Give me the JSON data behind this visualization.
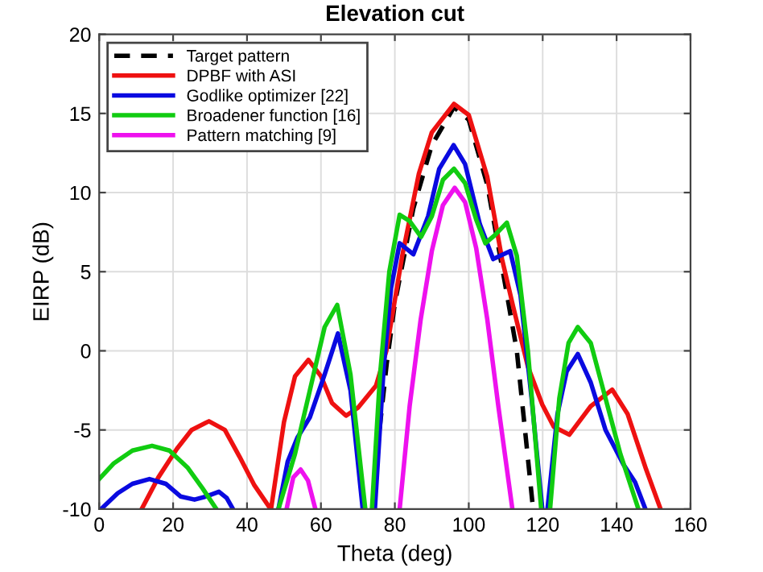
{
  "chart_data": {
    "type": "line",
    "title": "Elevation cut",
    "xlabel": "Theta (deg)",
    "ylabel": "EIRP (dB)",
    "xlim": [
      0,
      160
    ],
    "xticks": [
      0,
      20,
      40,
      60,
      80,
      100,
      120,
      140,
      160
    ],
    "ylim": [
      -10,
      20
    ],
    "yticks": [
      -10,
      -5,
      0,
      5,
      10,
      15,
      20
    ],
    "grid": true,
    "legend": "top left",
    "series": [
      {
        "name": "Target pattern",
        "color": "#000000",
        "line_style": "dashed",
        "x": [
          74.2,
          75,
          77.8,
          80,
          85,
          90,
          96,
          100,
          105,
          110,
          113,
          115,
          117.4
        ],
        "values": [
          -10,
          -6.8,
          -0.8,
          3,
          9,
          13,
          15.4,
          14.6,
          10.5,
          4,
          0,
          -4.5,
          -10
        ]
      },
      {
        "name": "DPBF with ASI",
        "color": "#ee1111",
        "x": [
          11.5,
          16,
          21,
          25,
          29.7,
          34,
          38,
          42,
          46.4,
          null,
          46.5,
          50,
          53,
          56.6,
          60,
          63,
          66.8,
          70,
          74.9,
          77.7,
          82,
          86.5,
          90,
          96,
          100,
          105,
          109,
          112,
          116,
          119.9,
          123,
          127.2,
          133,
          138.8,
          143,
          148,
          151.9
        ],
        "values": [
          -10,
          -8,
          -6.2,
          -5,
          -4.45,
          -5,
          -6.7,
          -8.5,
          -10,
          null,
          -10,
          -4.5,
          -1.6,
          -0.57,
          -1.6,
          -3.3,
          -4.1,
          -3.6,
          -2.2,
          0,
          6,
          11.2,
          13.8,
          15.6,
          14.9,
          11,
          5.8,
          2.8,
          -1,
          -3.4,
          -4.8,
          -5.3,
          -3.5,
          -2.45,
          -4,
          -7.5,
          -10
        ]
      },
      {
        "name": "Godlike optimizer [22]",
        "color": "#0a0ae0",
        "x": [
          0.5,
          5,
          9,
          13.6,
          18,
          22,
          25.8,
          29,
          32.4,
          34.5,
          36.2,
          null,
          48.5,
          51,
          53.6,
          57,
          61,
          64.6,
          68,
          71.3,
          null,
          74.6,
          77,
          79,
          81.3,
          85,
          89,
          92,
          95.9,
          99,
          103,
          106.6,
          111.2,
          114,
          117,
          119.9,
          null,
          121.3,
          124,
          126.5,
          129.5,
          133,
          137,
          141.9,
          145,
          147.8
        ],
        "values": [
          -10,
          -9,
          -8.4,
          -8.1,
          -8.4,
          -9.2,
          -9.4,
          -9.2,
          -8.9,
          -9.3,
          -10,
          null,
          -10,
          -7,
          -5.5,
          -4.2,
          -1.5,
          1.1,
          -2.5,
          -10,
          null,
          -10,
          -1,
          4,
          6.8,
          6.1,
          8.5,
          11.5,
          13,
          11.8,
          8,
          5.8,
          6.3,
          3.5,
          -3,
          -10,
          null,
          -10,
          -4,
          -1.3,
          -0.2,
          -2,
          -5,
          -7.2,
          -8.3,
          -10
        ]
      },
      {
        "name": "Broadener function [16]",
        "color": "#11cc11",
        "x": [
          0,
          4,
          9,
          14.3,
          19,
          24,
          28,
          31.7,
          null,
          48.5,
          53,
          57,
          61,
          64.4,
          68,
          72,
          null,
          73.8,
          76,
          78.5,
          81.3,
          84,
          87.1,
          90,
          93,
          96,
          99,
          102,
          104.5,
          107,
          110.3,
          113,
          116,
          119.6,
          null,
          122,
          124.5,
          127,
          129.5,
          133,
          137,
          141,
          145.9
        ],
        "values": [
          -8.1,
          -7.1,
          -6.3,
          -6,
          -6.3,
          -7.4,
          -8.7,
          -10,
          null,
          -10,
          -6.5,
          -2.5,
          1.5,
          2.9,
          -1.5,
          -10,
          null,
          -10,
          -1.5,
          5,
          8.6,
          8.2,
          7.2,
          8.5,
          10.8,
          11.5,
          10.6,
          8.3,
          6.8,
          7.3,
          8.1,
          6,
          0,
          -10,
          null,
          -10,
          -3,
          0.5,
          1.5,
          0.5,
          -3,
          -6.5,
          -10
        ]
      },
      {
        "name": "Pattern matching [9]",
        "color": "#ee11ee",
        "x": [
          50.7,
          52.5,
          54.5,
          56.5,
          58.5,
          null,
          81.3,
          84,
          87,
          90,
          93,
          96.2,
          99,
          102,
          105,
          108,
          111.8
        ],
        "values": [
          -10,
          -8,
          -7.5,
          -8.2,
          -10,
          null,
          -10,
          -3.5,
          2,
          6.3,
          9.2,
          10.3,
          9.4,
          6.5,
          2,
          -3.5,
          -10
        ]
      }
    ]
  }
}
